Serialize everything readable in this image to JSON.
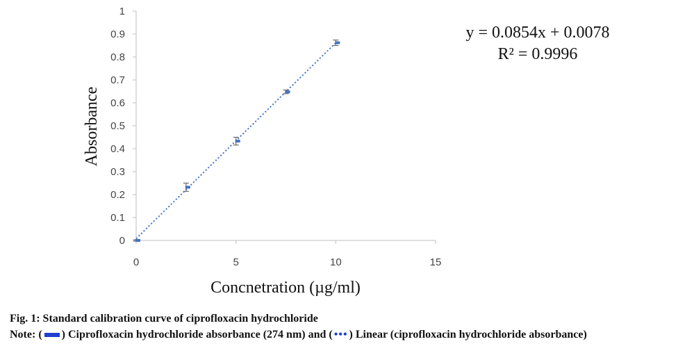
{
  "chart_data": {
    "type": "scatter",
    "xlabel": "Concnetration (µg/ml)",
    "ylabel": "Absorbance",
    "xlim": [
      0,
      15
    ],
    "ylim": [
      0,
      1
    ],
    "xticks": [
      "0",
      "5",
      "10",
      "15"
    ],
    "yticks": [
      "0",
      "0.1",
      "0.2",
      "0.3",
      "0.4",
      "0.5",
      "0.6",
      "0.7",
      "0.8",
      "0.9",
      "1"
    ],
    "series": [
      {
        "x": [
          0,
          2.5,
          5,
          7.5,
          10
        ],
        "y": [
          0.0,
          0.232,
          0.433,
          0.648,
          0.862
        ],
        "error": [
          0.003,
          0.018,
          0.017,
          0.008,
          0.012
        ],
        "color": "#4472c4"
      }
    ],
    "trendline": {
      "slope": 0.0854,
      "intercept": 0.0078,
      "color": "#4472c4",
      "style": "dotted"
    },
    "equation": "y = 0.0854x + 0.0078",
    "r_squared": "R² = 0.9996",
    "grid": false
  },
  "caption": {
    "title": "Fig. 1: Standard calibration curve of ciprofloxacin hydrochloride",
    "note_prefix": "Note: (",
    "note_mid": ") Ciprofloxacin hydrochloride absorbance (274 nm) and (",
    "note_suffix": ") Linear (ciprofloxacin hydrochloride absorbance)",
    "swatch_line_color": "#1f3fd0",
    "swatch_dots": "•••"
  }
}
